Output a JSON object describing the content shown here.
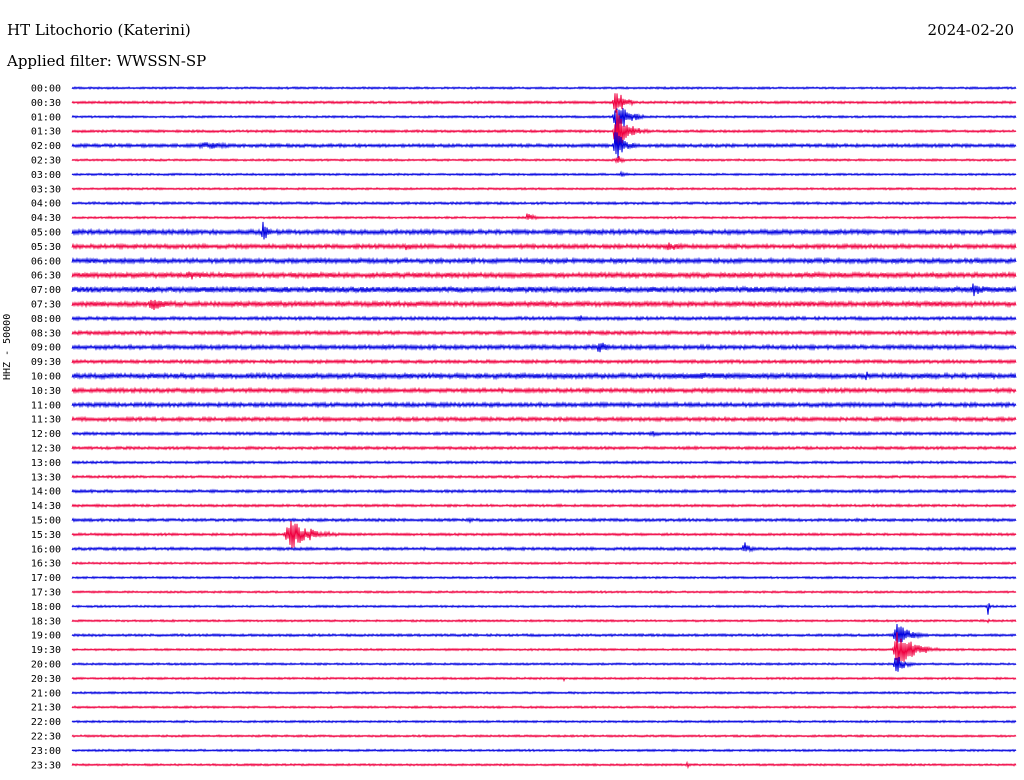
{
  "header": {
    "station": "HT Litochorio (Katerini)",
    "date": "2024-02-20",
    "filter": "Applied filter: WWSSN-SP"
  },
  "chart_data": {
    "type": "line",
    "title": "HT Litochorio (Katerini)",
    "ylabel": "HHZ - 50000",
    "grid": false,
    "colors": [
      "#0000e0",
      "#f00040"
    ],
    "rows": [
      "00:00",
      "00:30",
      "01:00",
      "01:30",
      "02:00",
      "02:30",
      "03:00",
      "03:30",
      "04:00",
      "04:30",
      "05:00",
      "05:30",
      "06:00",
      "06:30",
      "07:00",
      "07:30",
      "08:00",
      "08:30",
      "09:00",
      "09:30",
      "10:00",
      "10:30",
      "11:00",
      "11:30",
      "12:00",
      "12:30",
      "13:00",
      "13:30",
      "14:00",
      "14:30",
      "15:00",
      "15:30",
      "16:00",
      "16:30",
      "17:00",
      "17:30",
      "18:00",
      "18:30",
      "19:00",
      "19:30",
      "20:00",
      "20:30",
      "21:00",
      "21:30",
      "22:00",
      "22:30",
      "23:00",
      "23:30"
    ],
    "noise": [
      1.0,
      1.2,
      1.0,
      1.2,
      1.6,
      1.0,
      1.0,
      1.0,
      1.2,
      1.0,
      2.2,
      2.0,
      2.2,
      2.4,
      2.8,
      2.4,
      1.6,
      1.8,
      2.0,
      1.6,
      2.4,
      2.0,
      2.0,
      1.8,
      1.4,
      1.4,
      1.2,
      1.2,
      1.4,
      1.2,
      1.4,
      1.2,
      1.4,
      1.0,
      1.0,
      1.0,
      1.0,
      1.0,
      1.2,
      1.0,
      1.0,
      1.0,
      1.0,
      1.0,
      1.0,
      1.0,
      1.0,
      1.0
    ],
    "events": [
      {
        "row": 1,
        "t": 0.573,
        "amp": 14,
        "dur": 0.03
      },
      {
        "row": 2,
        "t": 0.573,
        "amp": 24,
        "dur": 0.035
      },
      {
        "row": 3,
        "t": 0.573,
        "amp": 22,
        "dur": 0.04
      },
      {
        "row": 4,
        "t": 0.573,
        "amp": 18,
        "dur": 0.03
      },
      {
        "row": 4,
        "t": 0.13,
        "amp": 4,
        "dur": 0.1
      },
      {
        "row": 5,
        "t": 0.575,
        "amp": 6,
        "dur": 0.02
      },
      {
        "row": 6,
        "t": 0.58,
        "amp": 3,
        "dur": 0.02
      },
      {
        "row": 9,
        "t": 0.48,
        "amp": 5,
        "dur": 0.025
      },
      {
        "row": 10,
        "t": 0.2,
        "amp": 12,
        "dur": 0.02
      },
      {
        "row": 11,
        "t": 0.625,
        "amp": 5,
        "dur": 0.06
      },
      {
        "row": 11,
        "t": 0.35,
        "amp": 4,
        "dur": 0.04
      },
      {
        "row": 13,
        "t": 0.12,
        "amp": 6,
        "dur": 0.05
      },
      {
        "row": 14,
        "t": 0.95,
        "amp": 7,
        "dur": 0.05
      },
      {
        "row": 15,
        "t": 0.08,
        "amp": 7,
        "dur": 0.05
      },
      {
        "row": 16,
        "t": 0.535,
        "amp": 6,
        "dur": 0.015
      },
      {
        "row": 18,
        "t": 0.555,
        "amp": 7,
        "dur": 0.035
      },
      {
        "row": 20,
        "t": 0.63,
        "amp": 4,
        "dur": 0.25
      },
      {
        "row": 20,
        "t": 0.84,
        "amp": 6,
        "dur": 0.015
      },
      {
        "row": 21,
        "t": 0.92,
        "amp": 4,
        "dur": 0.03
      },
      {
        "row": 24,
        "t": 0.61,
        "amp": 3,
        "dur": 0.04
      },
      {
        "row": 30,
        "t": 0.42,
        "amp": 3,
        "dur": 0.01
      },
      {
        "row": 31,
        "t": 0.225,
        "amp": 15,
        "dur": 0.07
      },
      {
        "row": 32,
        "t": 0.71,
        "amp": 8,
        "dur": 0.02
      },
      {
        "row": 36,
        "t": 0.97,
        "amp": 10,
        "dur": 0.004
      },
      {
        "row": 37,
        "t": 0.97,
        "amp": 3,
        "dur": 0.004
      },
      {
        "row": 38,
        "t": 0.87,
        "amp": 14,
        "dur": 0.04
      },
      {
        "row": 39,
        "t": 0.87,
        "amp": 22,
        "dur": 0.05
      },
      {
        "row": 40,
        "t": 0.87,
        "amp": 10,
        "dur": 0.03
      },
      {
        "row": 41,
        "t": 0.52,
        "amp": 3,
        "dur": 0.01
      },
      {
        "row": 47,
        "t": 0.65,
        "amp": 3,
        "dur": 0.015
      }
    ]
  }
}
